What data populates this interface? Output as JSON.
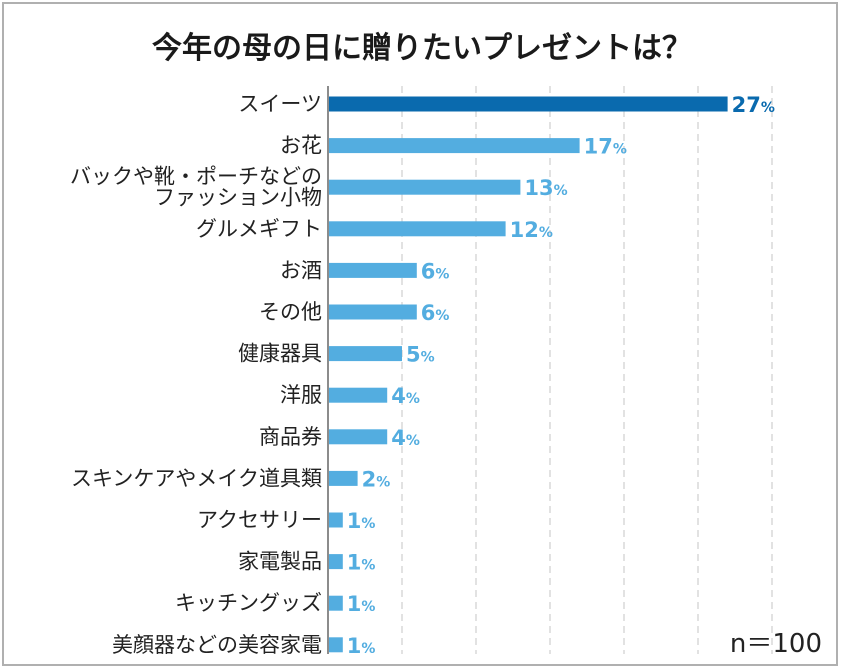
{
  "chart_data": {
    "type": "bar",
    "orientation": "horizontal",
    "title": "今年の母の日に贈りたいプレゼントは？",
    "categories": [
      [
        "スイーツ"
      ],
      [
        "お花"
      ],
      [
        "バックや靴・ポーチなどの",
        "ファッション小物"
      ],
      [
        "グルメギフト"
      ],
      [
        "お酒"
      ],
      [
        "その他"
      ],
      [
        "健康器具"
      ],
      [
        "洋服"
      ],
      [
        "商品券"
      ],
      [
        "スキンケアやメイク道具類"
      ],
      [
        "アクセサリー"
      ],
      [
        "家電製品"
      ],
      [
        "キッチングッズ"
      ],
      [
        "美顔器などの美容家電"
      ]
    ],
    "values": [
      27,
      17,
      13,
      12,
      6,
      6,
      5,
      4,
      4,
      2,
      1,
      1,
      1,
      1
    ],
    "unit": "%",
    "xlim": [
      0,
      30
    ],
    "grid": true,
    "highlight_index": 0,
    "sample_size": "n＝100",
    "colors": {
      "highlight": "#0a6aae",
      "bar": "#53ade0",
      "grid": "#d9d9d9",
      "axis": "#8c8c8c"
    }
  }
}
